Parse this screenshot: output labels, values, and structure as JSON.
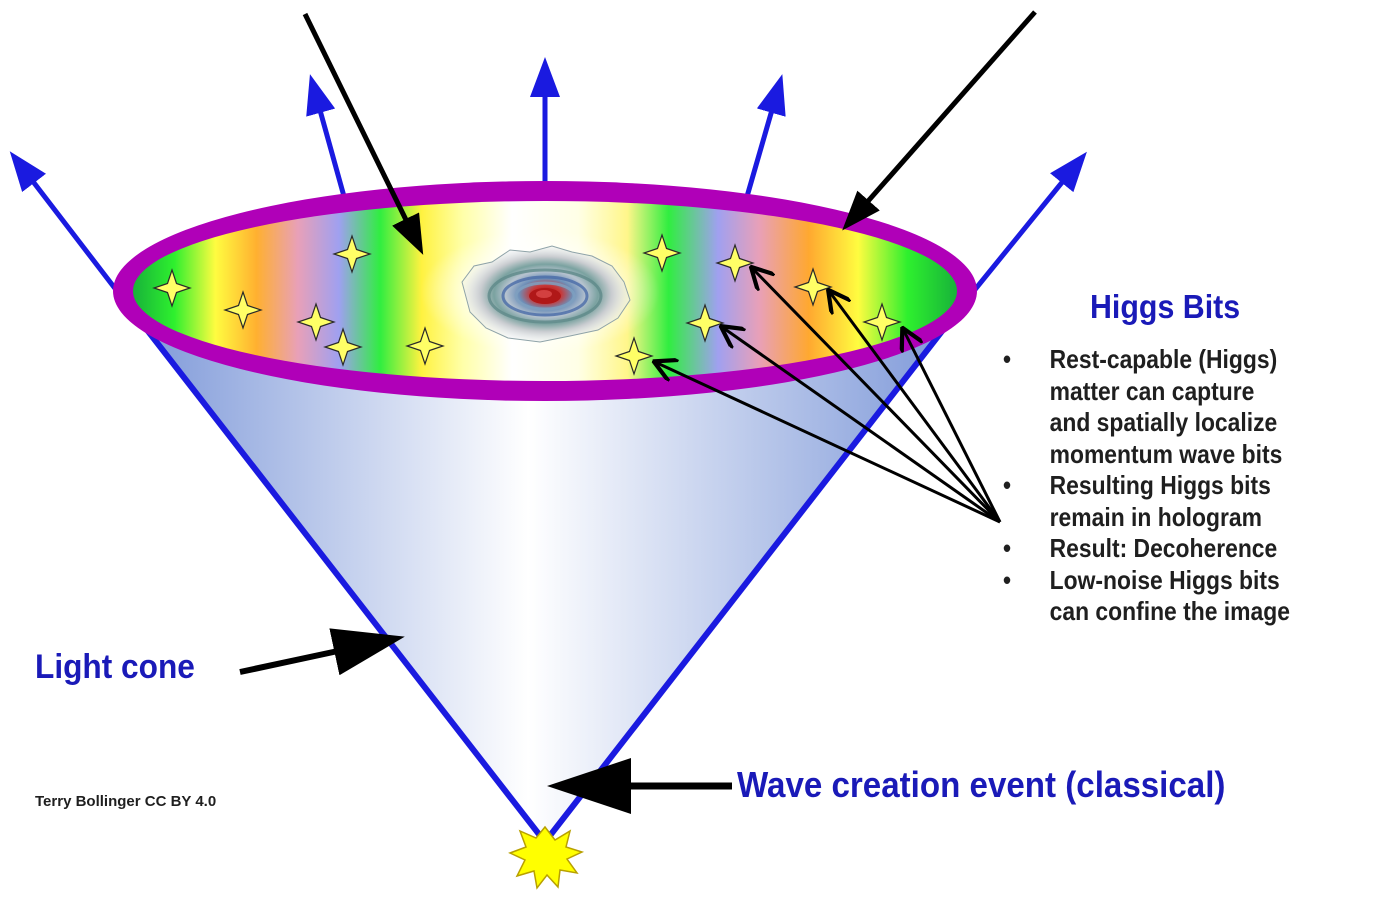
{
  "higgs_panel": {
    "title": "Higgs Bits",
    "bullets": [
      "Rest-capable (Higgs)",
      "matter can capture",
      "and spatially localize",
      "momentum wave bits",
      "Resulting Higgs bits",
      "remain in hologram",
      "Result: Decoherence",
      "Low-noise Higgs bits",
      "can confine the image"
    ]
  },
  "labels": {
    "light_cone": "Light cone",
    "wave_event": "Wave creation event (classical)"
  },
  "credit": "Terry Bollinger CC BY 4.0",
  "colors": {
    "label_blue": "#1a1ab8",
    "cone_edge": "#1a1ae0",
    "expansion_arrows": "#1a1ae0",
    "rim": "#b000b8",
    "pointer_arrows": "#000000",
    "higgs_star": "#ffff66",
    "event_burst": "#ffff00"
  },
  "icons": {
    "higgs_bit": "four-point-star-icon",
    "creation_event": "starburst-icon"
  }
}
